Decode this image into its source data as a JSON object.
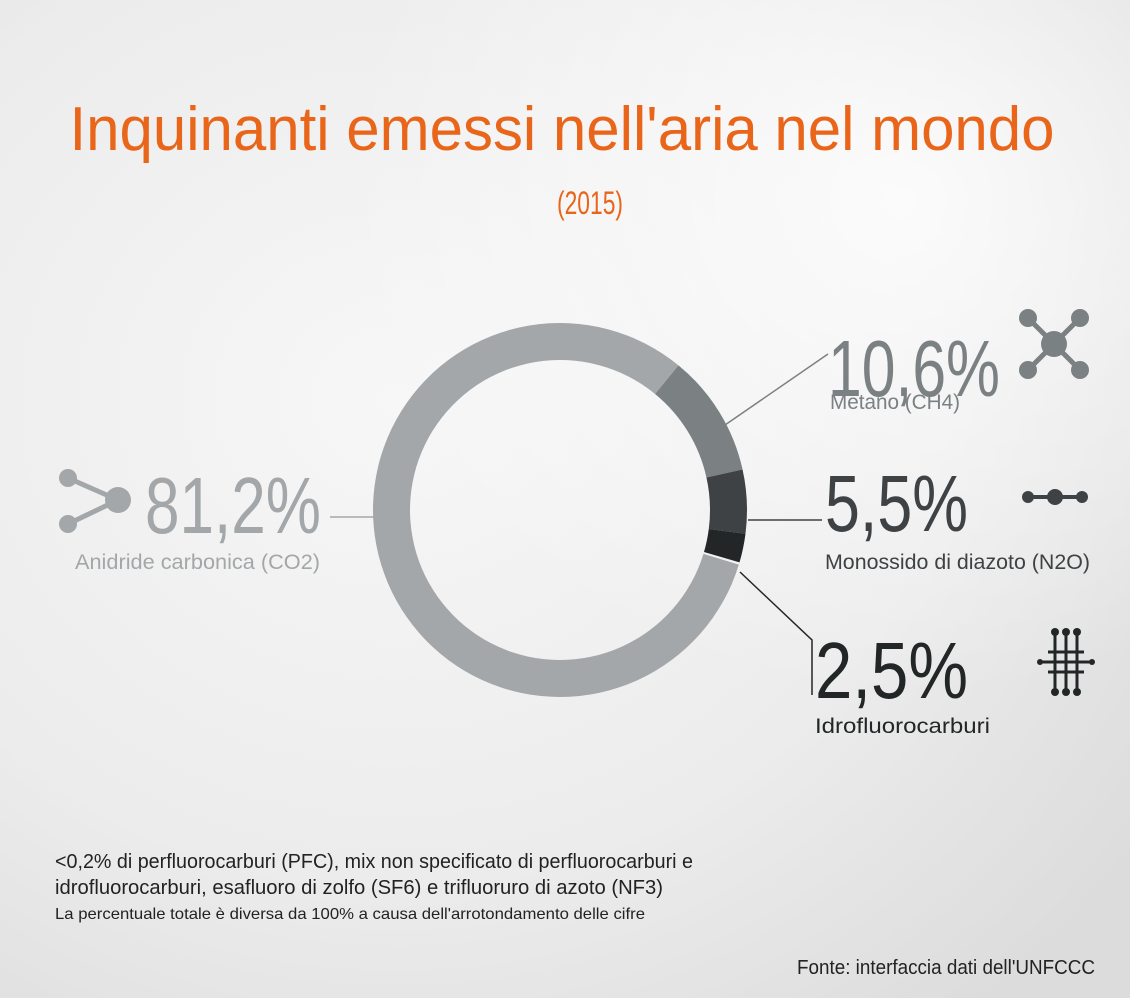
{
  "chart_data": {
    "type": "donut",
    "title": "Inquinanti emessi nell'aria nel mondo",
    "subtitle": "(2015)",
    "categories": [
      "Anidride carbonica (CO2)",
      "Metano (CH4)",
      "Monossido di diazoto (N2O)",
      "Idrofluorocarburi"
    ],
    "values": [
      81.2,
      10.6,
      5.5,
      2.5
    ],
    "value_labels": [
      "81,2%",
      "10,6%",
      "5,5%",
      "2,5%"
    ],
    "colors": [
      "#a3a7a9",
      "#7b8083",
      "#3e4244",
      "#232627"
    ],
    "annotations": [
      "<0,2% di perfluorocarburi (PFC), mix non specificato di perfluorocarburi e",
      "idrofluorocarburi, esafluoro di zolfo (SF6) e trifluoruro di azoto (NF3)",
      "La percentuale totale è diversa da 100% a causa dell'arrotondamento delle cifre"
    ],
    "source": "Fonte: interfaccia dati dell'UNFCCC"
  }
}
